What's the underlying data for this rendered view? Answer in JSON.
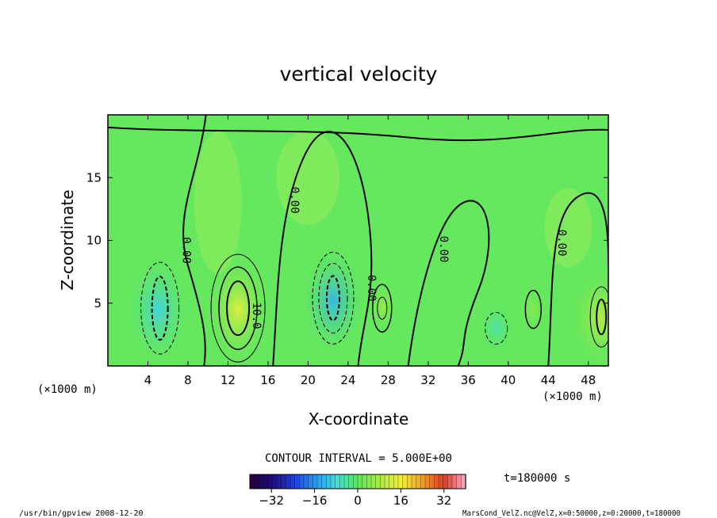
{
  "chart_data": {
    "type": "heatmap",
    "title": "vertical velocity",
    "xlabel": "X-coordinate",
    "ylabel": "Z-coordinate",
    "x_unit_left": "(×1000 m)",
    "x_unit_right": "(×1000 m)",
    "xlim": [
      0,
      50
    ],
    "ylim": [
      0,
      20
    ],
    "x_ticks": [
      4,
      8,
      12,
      16,
      20,
      24,
      28,
      32,
      36,
      40,
      44,
      48
    ],
    "y_ticks": [
      5,
      10,
      15
    ],
    "contour_interval_text": "CONTOUR INTERVAL = 5.000E+00",
    "contour_labels": [
      {
        "text": "0.00",
        "x": 7.5,
        "y": 9.2
      },
      {
        "text": "10.0",
        "x": 14.5,
        "y": 4.0
      },
      {
        "text": "0.00",
        "x": 18.3,
        "y": 13.2
      },
      {
        "text": "0.00",
        "x": 26.0,
        "y": 6.2
      },
      {
        "text": "0.00",
        "x": 33.2,
        "y": 9.3
      },
      {
        "text": "0.00",
        "x": 45.0,
        "y": 9.8
      }
    ],
    "features": [
      {
        "kind": "updraft",
        "x": 13.0,
        "y": 4.5,
        "value": 14
      },
      {
        "kind": "downdraft",
        "x": 22.5,
        "y": 5.2,
        "value": -12
      },
      {
        "kind": "downdraft",
        "x": 5.0,
        "y": 4.5,
        "value": -9
      },
      {
        "kind": "updraft",
        "x": 27.5,
        "y": 4.7,
        "value": 6
      },
      {
        "kind": "updraft",
        "x": 49.2,
        "y": 3.8,
        "value": 9
      },
      {
        "kind": "downdraft",
        "x": 38.8,
        "y": 3.0,
        "value": -5
      },
      {
        "kind": "updraft",
        "x": 42.5,
        "y": 4.5,
        "value": 4
      }
    ],
    "colorbar": {
      "ticks": [
        -32,
        -16,
        0,
        16,
        32
      ],
      "range": [
        -40,
        40
      ]
    },
    "time_label": "t=180000 s",
    "footer_left": "/usr/bin/gpview  2008-12-20",
    "footer_right": "MarsCond_VelZ.nc@VelZ,x=0:50000,z=0:20000,t=180000"
  }
}
